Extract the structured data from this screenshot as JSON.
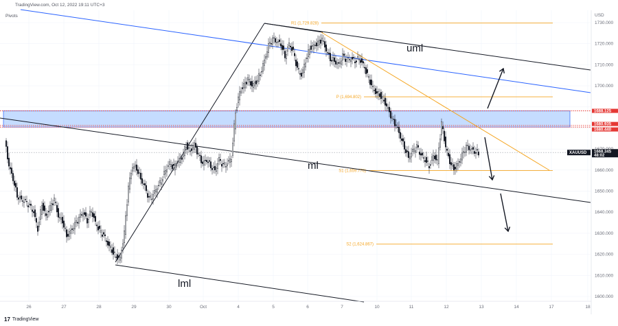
{
  "header": {
    "source": "TradingView.com, Oct 12, 2022 19:11 UTC+3",
    "indicator": "Pivots",
    "brand": "TradingView",
    "brand_mark": "17"
  },
  "colors": {
    "candle": "#131722",
    "channel": "#131722",
    "trendline": "#2962ff",
    "pivot": "#f5a623",
    "zone_fill": "#bbd6ff",
    "zone_border": "#2962ff",
    "dotted": "#e53935",
    "price_tag": "#131722"
  },
  "chart_data": {
    "type": "candlestick",
    "symbol": "XAUUSD",
    "currency": "USD",
    "last_price": "1668.345",
    "countdown": "48:02",
    "ylim": [
      1597,
      1737
    ],
    "y_ticks": [
      1600,
      1610,
      1620,
      1630,
      1640,
      1650,
      1660,
      1670,
      1680,
      1690,
      1700,
      1710,
      1720,
      1730
    ],
    "x_ticks": [
      "26",
      "27",
      "28",
      "29",
      "30",
      "Oct",
      "4",
      "5",
      "6",
      "7",
      "10",
      "11",
      "12",
      "13",
      "14",
      "17",
      "18"
    ],
    "pivot_levels": [
      {
        "name": "R1",
        "label": "R1 (1,729.828)",
        "value": 1729.828
      },
      {
        "name": "P",
        "label": "P (1,694.802)",
        "value": 1694.802
      },
      {
        "name": "S1",
        "label": "S1 (1,659.776)",
        "value": 1659.776
      },
      {
        "name": "S2",
        "label": "S2 (1,624.867)",
        "value": 1624.867
      }
    ],
    "price_labels": [
      "1688.125",
      "1680.935",
      "1680.440"
    ],
    "zone": {
      "from": 1680.44,
      "to": 1688.125
    },
    "annotations": [
      "uml",
      "ml",
      "lml"
    ],
    "price_path": [
      [
        0,
        1674
      ],
      [
        6,
        1662
      ],
      [
        12,
        1656
      ],
      [
        18,
        1648
      ],
      [
        24,
        1646
      ],
      [
        30,
        1645
      ],
      [
        36,
        1643
      ],
      [
        42,
        1640
      ],
      [
        48,
        1632
      ],
      [
        54,
        1644
      ],
      [
        60,
        1638
      ],
      [
        66,
        1642
      ],
      [
        72,
        1646
      ],
      [
        78,
        1638
      ],
      [
        84,
        1636
      ],
      [
        90,
        1629
      ],
      [
        96,
        1631
      ],
      [
        102,
        1634
      ],
      [
        108,
        1637
      ],
      [
        114,
        1640
      ],
      [
        120,
        1636
      ],
      [
        126,
        1641
      ],
      [
        132,
        1635
      ],
      [
        138,
        1631
      ],
      [
        144,
        1629
      ],
      [
        150,
        1625
      ],
      [
        156,
        1622
      ],
      [
        162,
        1619
      ],
      [
        168,
        1618
      ],
      [
        174,
        1630
      ],
      [
        180,
        1652
      ],
      [
        186,
        1662
      ],
      [
        192,
        1661
      ],
      [
        198,
        1656
      ],
      [
        204,
        1652
      ],
      [
        210,
        1646
      ],
      [
        216,
        1648
      ],
      [
        222,
        1652
      ],
      [
        228,
        1655
      ],
      [
        234,
        1660
      ],
      [
        240,
        1663
      ],
      [
        246,
        1661
      ],
      [
        252,
        1664
      ],
      [
        258,
        1666
      ],
      [
        264,
        1672
      ],
      [
        270,
        1669
      ],
      [
        276,
        1672
      ],
      [
        282,
        1667
      ],
      [
        288,
        1663
      ],
      [
        294,
        1665
      ],
      [
        300,
        1662
      ],
      [
        306,
        1660
      ],
      [
        312,
        1665
      ],
      [
        318,
        1662
      ],
      [
        324,
        1663
      ],
      [
        330,
        1666
      ],
      [
        336,
        1688
      ],
      [
        342,
        1697
      ],
      [
        348,
        1700
      ],
      [
        354,
        1703
      ],
      [
        360,
        1700
      ],
      [
        366,
        1702
      ],
      [
        372,
        1706
      ],
      [
        378,
        1712
      ],
      [
        384,
        1719
      ],
      [
        390,
        1722
      ],
      [
        396,
        1721
      ],
      [
        402,
        1720
      ],
      [
        408,
        1714
      ],
      [
        414,
        1720
      ],
      [
        420,
        1716
      ],
      [
        426,
        1708
      ],
      [
        432,
        1705
      ],
      [
        438,
        1712
      ],
      [
        444,
        1718
      ],
      [
        450,
        1719
      ],
      [
        456,
        1720
      ],
      [
        462,
        1722
      ],
      [
        468,
        1717
      ],
      [
        474,
        1713
      ],
      [
        480,
        1712
      ],
      [
        486,
        1710
      ],
      [
        492,
        1714
      ],
      [
        498,
        1712
      ],
      [
        504,
        1713
      ],
      [
        510,
        1712
      ],
      [
        516,
        1713
      ],
      [
        522,
        1710
      ],
      [
        528,
        1705
      ],
      [
        534,
        1700
      ],
      [
        540,
        1697
      ],
      [
        546,
        1696
      ],
      [
        552,
        1693
      ],
      [
        558,
        1689
      ],
      [
        564,
        1684
      ],
      [
        570,
        1681
      ],
      [
        576,
        1676
      ],
      [
        582,
        1671
      ],
      [
        588,
        1666
      ],
      [
        594,
        1669
      ],
      [
        600,
        1671
      ],
      [
        606,
        1667
      ],
      [
        612,
        1665
      ],
      [
        618,
        1662
      ],
      [
        624,
        1667
      ],
      [
        630,
        1664
      ],
      [
        636,
        1682
      ],
      [
        642,
        1671
      ],
      [
        648,
        1664
      ],
      [
        654,
        1661
      ],
      [
        660,
        1663
      ],
      [
        666,
        1667
      ],
      [
        672,
        1671
      ],
      [
        678,
        1670
      ],
      [
        684,
        1669
      ],
      [
        690,
        1668
      ]
    ]
  }
}
